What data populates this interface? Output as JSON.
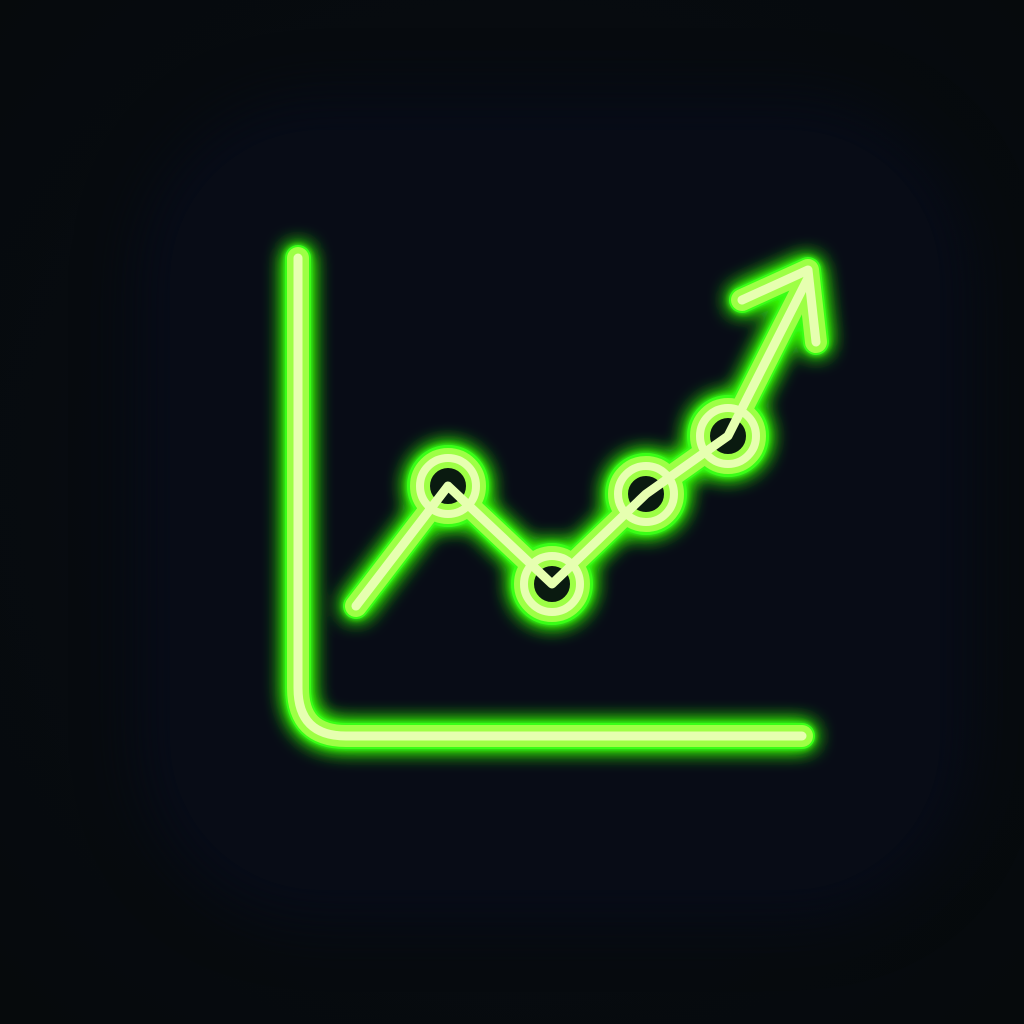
{
  "icon": {
    "name": "trending-up-chart-icon",
    "glyph": "line-chart-with-arrow",
    "colors": {
      "background": "#070c10",
      "tile": "#080c16",
      "neon_core": "#e6ffb0",
      "neon_stroke": "#9dff45",
      "neon_glow": "#39ff14"
    }
  }
}
